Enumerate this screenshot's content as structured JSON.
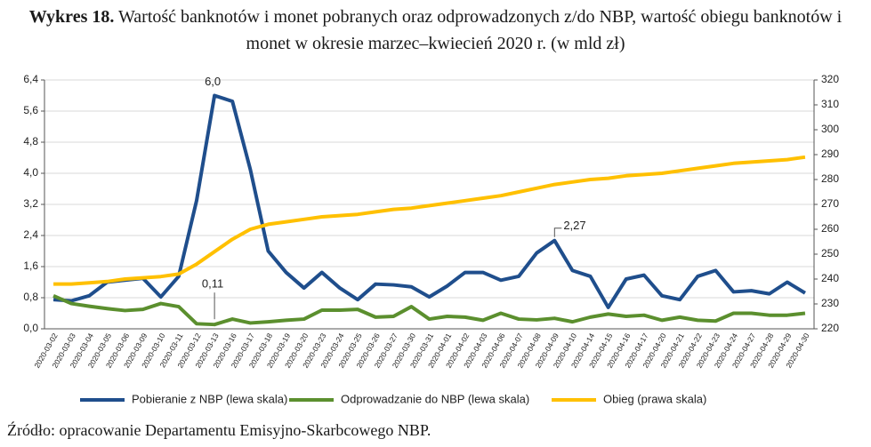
{
  "chart_data": {
    "type": "line",
    "title_label": "Wykres 18.",
    "title": "Wartość banknotów i monet pobranych oraz odprowadzonych z/do NBP, wartość obiegu banknotów i monet w okresie marzec–kwiecień 2020 r. (w mld zł)",
    "source": "Źródło: opracowanie Departamentu Emisyjno-Skarbcowego NBP.",
    "categories": [
      "2020-03-02",
      "2020-03-03",
      "2020-03-04",
      "2020-03-05",
      "2020-03-06",
      "2020-03-09",
      "2020-03-10",
      "2020-03-11",
      "2020-03-12",
      "2020-03-13",
      "2020-03-16",
      "2020-03-17",
      "2020-03-18",
      "2020-03-19",
      "2020-03-20",
      "2020-03-23",
      "2020-03-24",
      "2020-03-25",
      "2020-03-26",
      "2020-03-27",
      "2020-03-30",
      "2020-03-31",
      "2020-04-01",
      "2020-04-02",
      "2020-04-03",
      "2020-04-06",
      "2020-04-07",
      "2020-04-08",
      "2020-04-09",
      "2020-04-10",
      "2020-04-14",
      "2020-04-15",
      "2020-04-16",
      "2020-04-17",
      "2020-04-20",
      "2020-04-21",
      "2020-04-22",
      "2020-04-23",
      "2020-04-24",
      "2020-04-27",
      "2020-04-28",
      "2020-04-29",
      "2020-04-30"
    ],
    "series": [
      {
        "name": "Pobieranie z NBP (lewa skala)",
        "color": "#1f4e8c",
        "values": [
          0.75,
          0.72,
          0.85,
          1.2,
          1.25,
          1.3,
          0.82,
          1.35,
          3.3,
          6.0,
          5.85,
          4.1,
          2.0,
          1.45,
          1.05,
          1.45,
          1.05,
          0.75,
          1.15,
          1.13,
          1.08,
          0.82,
          1.1,
          1.45,
          1.45,
          1.25,
          1.35,
          1.95,
          2.27,
          1.5,
          1.35,
          0.55,
          1.28,
          1.38,
          0.85,
          0.75,
          1.35,
          1.5,
          0.95,
          0.98,
          0.9,
          1.2,
          0.92
        ],
        "value_labels": [
          null,
          null,
          null,
          null,
          null,
          null,
          null,
          null,
          null,
          "6,0",
          null,
          null,
          null,
          null,
          null,
          null,
          null,
          null,
          null,
          null,
          null,
          null,
          null,
          null,
          null,
          null,
          null,
          null,
          "2,27",
          null,
          null,
          null,
          null,
          null,
          null,
          null,
          null,
          null,
          null,
          null,
          null,
          null,
          null
        ]
      },
      {
        "name": "Odprowadzanie do NBP (lewa skala)",
        "color": "#5b8f2e",
        "values": [
          0.85,
          0.65,
          0.58,
          0.52,
          0.47,
          0.5,
          0.65,
          0.57,
          0.13,
          0.11,
          0.25,
          0.15,
          0.18,
          0.22,
          0.25,
          0.48,
          0.48,
          0.5,
          0.3,
          0.32,
          0.57,
          0.25,
          0.32,
          0.3,
          0.22,
          0.4,
          0.25,
          0.23,
          0.27,
          0.18,
          0.3,
          0.38,
          0.32,
          0.35,
          0.22,
          0.3,
          0.22,
          0.2,
          0.4,
          0.4,
          0.35,
          0.35,
          0.4
        ],
        "value_labels": [
          null,
          null,
          null,
          null,
          null,
          null,
          null,
          null,
          null,
          "0,11",
          null,
          null,
          null,
          null,
          null,
          null,
          null,
          null,
          null,
          null,
          null,
          null,
          null,
          null,
          null,
          null,
          null,
          null,
          null,
          null,
          null,
          null,
          null,
          null,
          null,
          null,
          null,
          null,
          null,
          null,
          null,
          null,
          null
        ]
      },
      {
        "name": "Obieg (prawa skala)",
        "color": "#ffc000",
        "axis": "y2",
        "values": [
          238,
          238,
          238.5,
          239,
          240,
          240.5,
          241,
          242,
          246,
          251,
          256,
          260,
          262,
          263,
          264,
          265,
          265.5,
          266,
          267,
          268,
          268.5,
          269.5,
          270.5,
          271.5,
          272.5,
          273.5,
          275,
          276.5,
          278,
          279,
          280,
          280.5,
          281.5,
          282,
          282.5,
          283.5,
          284.5,
          285.5,
          286.5,
          287,
          287.5,
          288,
          289
        ]
      }
    ],
    "ylim": [
      0,
      6.4
    ],
    "yticks": [
      {
        "value": 0,
        "label": "0,0"
      },
      {
        "value": 0.8,
        "label": "0,8"
      },
      {
        "value": 1.6,
        "label": "1,6"
      },
      {
        "value": 2.4,
        "label": "2,4"
      },
      {
        "value": 3.2,
        "label": "3,2"
      },
      {
        "value": 4.0,
        "label": "4,0"
      },
      {
        "value": 4.8,
        "label": "4,8"
      },
      {
        "value": 5.6,
        "label": "5,6"
      },
      {
        "value": 6.4,
        "label": "6,4"
      }
    ],
    "y2lim": [
      220,
      320
    ],
    "y2ticks": [
      220,
      230,
      240,
      250,
      260,
      270,
      280,
      290,
      300,
      310,
      320
    ],
    "grid": true
  }
}
